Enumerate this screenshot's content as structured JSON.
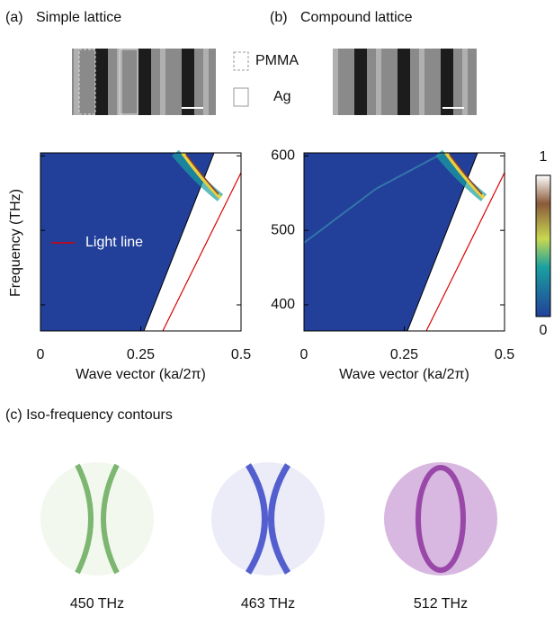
{
  "panel_a": {
    "label": "(a)",
    "title": "Simple lattice"
  },
  "panel_b": {
    "label": "(b)",
    "title": "Compound lattice"
  },
  "legend": {
    "dashed": "PMMA",
    "solid": "Ag"
  },
  "plots": {
    "ylabel": "Frequency (THz)",
    "xlabel": "Wave vector (ka/2π)",
    "light_line": "Light line",
    "xlim": [
      0,
      0.5
    ],
    "xticks": [
      0,
      0.25,
      0.5
    ],
    "ylim": [
      365,
      604
    ],
    "yticks": [
      400,
      500,
      600
    ]
  },
  "colorbar": {
    "max": 1,
    "min": 0
  },
  "panel_c": {
    "title": "(c) Iso-frequency contours",
    "contours": [
      "450 THz",
      "463 THz",
      "512 THz"
    ]
  }
}
